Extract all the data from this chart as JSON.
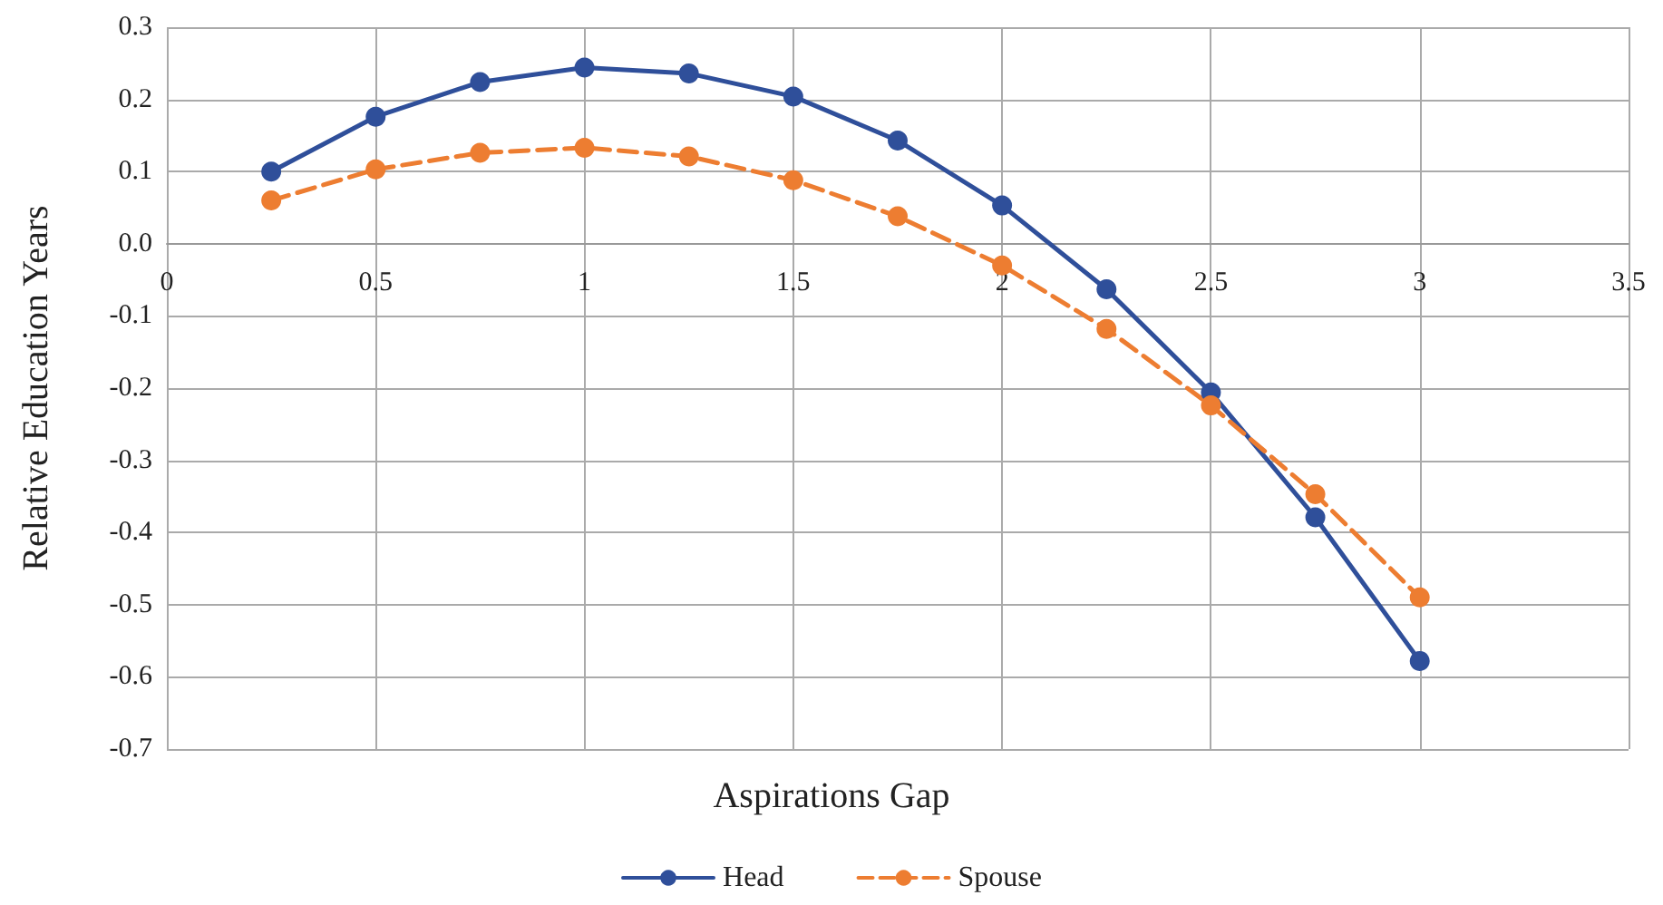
{
  "chart_data": {
    "type": "line",
    "xlabel": "Aspirations Gap",
    "ylabel": "Relative Education Years",
    "x": [
      0.25,
      0.5,
      0.75,
      1,
      1.25,
      1.5,
      1.75,
      2,
      2.25,
      2.5,
      2.75,
      3
    ],
    "series": [
      {
        "name": "Head",
        "color": "#2f4f9a",
        "values": [
          0.1,
          0.176,
          0.224,
          0.244,
          0.236,
          0.204,
          0.143,
          0.053,
          -0.063,
          -0.206,
          -0.379,
          -0.578
        ],
        "line_style": "solid"
      },
      {
        "name": "Spouse",
        "color": "#ed7d31",
        "values": [
          0.06,
          0.103,
          0.126,
          0.133,
          0.121,
          0.088,
          0.038,
          -0.03,
          -0.118,
          -0.224,
          -0.347,
          -0.49
        ],
        "line_style": "dashed"
      }
    ],
    "xlim": [
      0,
      3.5
    ],
    "xticks": [
      0,
      0.5,
      1,
      1.5,
      2,
      2.5,
      3,
      3.5
    ],
    "ylim": [
      -0.7,
      0.3
    ],
    "yticks": [
      -0.7,
      -0.6,
      -0.5,
      -0.4,
      -0.3,
      -0.2,
      -0.1,
      {
        "value": 0,
        "label": "0.0"
      },
      0.1,
      0.2,
      0.3
    ],
    "grid": true,
    "legend": "bottom",
    "marker": "circle"
  }
}
